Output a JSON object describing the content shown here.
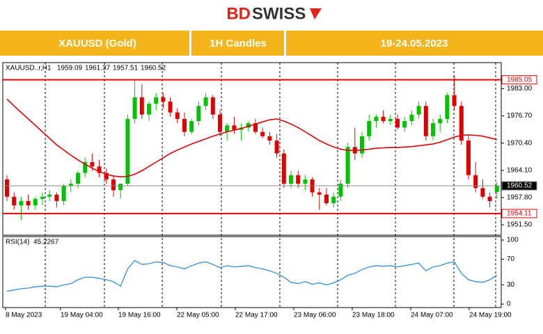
{
  "logo_part1": "BD",
  "logo_part2": "SWISS",
  "banner": [
    "XAUUSD (Gold)",
    "1H Candles",
    "19-24.05.2023"
  ],
  "chart_data": {
    "type": "candlestick",
    "symbol_label": "XAUUSD..r,H1",
    "up_color": "#00c400",
    "down_color": "#e00000",
    "ylim": [
      1949.1,
      1988.7
    ],
    "yticks": [
      {
        "value": 1983,
        "label": "1983.00"
      },
      {
        "value": 1976.7,
        "label": "1976.70"
      },
      {
        "value": 1970.4,
        "label": "1970.40"
      },
      {
        "value": 1964.1,
        "label": "1964.10"
      },
      {
        "value": 1957.8,
        "label": "1957.80"
      },
      {
        "value": 1951.5,
        "label": "1951.50"
      }
    ],
    "levels": [
      {
        "value": 1985.05,
        "color": "#e00000"
      },
      {
        "value": 1954.11,
        "color": "#e00000"
      },
      {
        "value": 1960.52,
        "color": "#888888"
      }
    ],
    "time_labels": [
      "8 May 2023",
      "19 May 04:00",
      "19 May 16:00",
      "22 May 05:00",
      "22 May 17:00",
      "23 May 06:00",
      "23 May 18:00",
      "24 May 07:00",
      "24 May 19:00"
    ],
    "candles": [
      [
        1962,
        1963,
        1957,
        1958
      ],
      [
        1958,
        1959,
        1955,
        1956
      ],
      [
        1956,
        1958,
        1952.5,
        1957
      ],
      [
        1957,
        1958.5,
        1955,
        1956
      ],
      [
        1956,
        1958,
        1955,
        1957.5
      ],
      [
        1957.5,
        1959,
        1956,
        1958
      ],
      [
        1958,
        1959.5,
        1957,
        1958.5
      ],
      [
        1958.5,
        1959,
        1955.5,
        1957
      ],
      [
        1957,
        1961,
        1956,
        1960.5
      ],
      [
        1960.5,
        1962,
        1959,
        1961
      ],
      [
        1961,
        1964,
        1960,
        1963.5
      ],
      [
        1963.5,
        1967,
        1962.5,
        1966
      ],
      [
        1966,
        1968,
        1964,
        1965
      ],
      [
        1965,
        1966.5,
        1962.5,
        1963.5
      ],
      [
        1963.5,
        1964.5,
        1961,
        1962
      ],
      [
        1962,
        1963,
        1958,
        1959.5
      ],
      [
        1959.5,
        1961,
        1957.5,
        1961
      ],
      [
        1961,
        1977,
        1960.5,
        1976
      ],
      [
        1976,
        1985,
        1975,
        1981
      ],
      [
        1981,
        1984,
        1976,
        1977
      ],
      [
        1977,
        1980,
        1975.5,
        1979.5
      ],
      [
        1979.5,
        1982,
        1978,
        1981
      ],
      [
        1981,
        1982,
        1978.5,
        1980
      ],
      [
        1980,
        1981,
        1976.5,
        1977.5
      ],
      [
        1977.5,
        1978.5,
        1975,
        1976
      ],
      [
        1976,
        1977.5,
        1972,
        1973
      ],
      [
        1973,
        1976,
        1972.5,
        1975.5
      ],
      [
        1975.5,
        1980,
        1974.5,
        1979
      ],
      [
        1979,
        1982,
        1978,
        1981
      ],
      [
        1981,
        1981.5,
        1976,
        1977
      ],
      [
        1977,
        1978,
        1972,
        1973
      ],
      [
        1973,
        1975,
        1971,
        1974.5
      ],
      [
        1974.5,
        1976.5,
        1972.5,
        1973.5
      ],
      [
        1973.5,
        1975,
        1971,
        1974
      ],
      [
        1974,
        1975.5,
        1973,
        1975
      ],
      [
        1975,
        1976,
        1972.5,
        1973
      ],
      [
        1973,
        1974,
        1971.5,
        1972
      ],
      [
        1972,
        1973,
        1970,
        1971
      ],
      [
        1971,
        1972.5,
        1967,
        1968
      ],
      [
        1968,
        1969,
        1960,
        1961
      ],
      [
        1961,
        1964,
        1960,
        1963
      ],
      [
        1963,
        1964,
        1960,
        1961
      ],
      [
        1961,
        1963,
        1959.5,
        1962
      ],
      [
        1962,
        1962.5,
        1958,
        1959
      ],
      [
        1959,
        1960,
        1955,
        1958.5
      ],
      [
        1958.5,
        1960,
        1956,
        1956.5
      ],
      [
        1956.5,
        1959,
        1955.5,
        1958
      ],
      [
        1958,
        1962,
        1957,
        1961
      ],
      [
        1961,
        1970.5,
        1960,
        1969.5
      ],
      [
        1969.5,
        1974,
        1966.5,
        1968
      ],
      [
        1968,
        1973,
        1967,
        1972
      ],
      [
        1972,
        1977,
        1971,
        1975.5
      ],
      [
        1975.5,
        1977,
        1974,
        1976.5
      ],
      [
        1976.5,
        1978,
        1975,
        1975.5
      ],
      [
        1975.5,
        1977,
        1974.5,
        1976
      ],
      [
        1976,
        1977,
        1973.5,
        1974
      ],
      [
        1974,
        1976.5,
        1973,
        1975.5
      ],
      [
        1975.5,
        1978,
        1974.5,
        1977
      ],
      [
        1977,
        1980,
        1976,
        1979
      ],
      [
        1979,
        1980,
        1971,
        1972
      ],
      [
        1972,
        1976,
        1971,
        1975
      ],
      [
        1975,
        1977,
        1973,
        1976
      ],
      [
        1976,
        1982,
        1975,
        1981.5
      ],
      [
        1981.5,
        1986,
        1978,
        1979
      ],
      [
        1979,
        1980,
        1970,
        1971
      ],
      [
        1971,
        1972,
        1962,
        1963
      ],
      [
        1963,
        1966,
        1959,
        1960
      ],
      [
        1960,
        1962,
        1957.5,
        1958
      ],
      [
        1958,
        1959,
        1955.5,
        1957
      ],
      [
        1959.09,
        1961.37,
        1957.51,
        1960.52
      ]
    ],
    "ma": {
      "color": "#e00000",
      "values": [
        1980.6,
        1979,
        1977.5,
        1976,
        1974.5,
        1973,
        1971.5,
        1970,
        1968.8,
        1967.6,
        1966.5,
        1965.5,
        1964.6,
        1963.8,
        1963.2,
        1962.8,
        1962.6,
        1962.7,
        1963.2,
        1964,
        1965,
        1966,
        1967,
        1968,
        1968.8,
        1969.5,
        1970.2,
        1970.8,
        1971.4,
        1972,
        1972.5,
        1973,
        1973.4,
        1973.8,
        1974.3,
        1974.8,
        1975.3,
        1975.8,
        1976,
        1975.5,
        1974.8,
        1974,
        1973,
        1972,
        1971,
        1970.2,
        1969.5,
        1969,
        1968.7,
        1968.7,
        1968.8,
        1969,
        1969.2,
        1969.3,
        1969.4,
        1969.4,
        1969.5,
        1969.6,
        1969.8,
        1970,
        1970.2,
        1970.6,
        1971.2,
        1971.8,
        1972.2,
        1972.3,
        1972.2,
        1972,
        1971.6,
        1971.2
      ]
    },
    "rsi": {
      "label": "RSI(14)",
      "color": "#2e8fe0",
      "ylim": [
        0,
        100
      ],
      "yticks": [
        100,
        70,
        30,
        0
      ],
      "values": [
        20,
        22,
        24,
        25,
        27,
        28,
        28,
        27,
        30,
        32,
        38,
        42,
        42,
        40,
        38,
        35,
        28,
        55,
        68,
        62,
        63,
        66,
        65,
        60,
        58,
        55,
        60,
        64,
        66,
        62,
        57,
        60,
        58,
        59,
        60,
        57,
        55,
        52,
        48,
        42,
        34,
        32,
        35,
        31,
        33,
        30,
        33,
        38,
        45,
        48,
        54,
        58,
        60,
        59,
        60,
        58,
        60,
        62,
        64,
        52,
        58,
        60,
        64,
        66,
        48,
        38,
        35,
        34,
        38,
        45.2267
      ]
    }
  }
}
